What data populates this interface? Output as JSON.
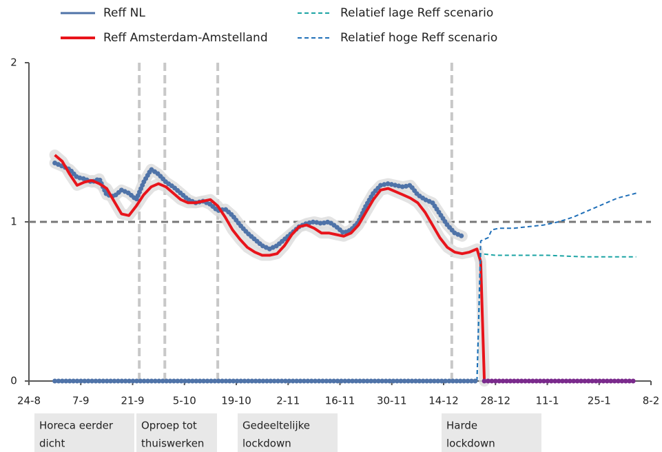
{
  "chart_data": {
    "type": "line",
    "xlim": [
      0,
      168
    ],
    "xticks": [
      {
        "value": 0,
        "label": "24-8"
      },
      {
        "value": 14,
        "label": "7-9"
      },
      {
        "value": 28,
        "label": "21-9"
      },
      {
        "value": 42,
        "label": "5-10"
      },
      {
        "value": 56,
        "label": "19-10"
      },
      {
        "value": 70,
        "label": "2-11"
      },
      {
        "value": 84,
        "label": "16-11"
      },
      {
        "value": 98,
        "label": "30-11"
      },
      {
        "value": 112,
        "label": "14-12"
      },
      {
        "value": 126,
        "label": "28-12"
      },
      {
        "value": 140,
        "label": "11-1"
      },
      {
        "value": 154,
        "label": "25-1"
      },
      {
        "value": 168,
        "label": "8-2"
      }
    ],
    "ylim": [
      0,
      2
    ],
    "yticks": [
      0,
      1,
      2
    ],
    "reference_line": 1,
    "legend": "top-left",
    "series": [
      {
        "name": "Reff NL",
        "color": "#4f73a8",
        "style": "dotted",
        "band": true,
        "x": [
          7,
          9,
          11,
          13,
          15,
          17,
          19,
          21,
          23,
          25,
          27,
          29,
          31,
          33,
          35,
          37,
          39,
          41,
          43,
          45,
          47,
          49,
          51,
          53,
          55,
          57,
          59,
          61,
          63,
          65,
          67,
          69,
          71,
          73,
          75,
          77,
          79,
          81,
          83,
          85,
          87,
          89,
          91,
          93,
          95,
          97,
          99,
          101,
          103,
          105,
          107,
          109,
          111,
          113,
          115,
          117
        ],
        "values": [
          1.37,
          1.35,
          1.33,
          1.28,
          1.27,
          1.25,
          1.27,
          1.17,
          1.16,
          1.2,
          1.18,
          1.14,
          1.25,
          1.33,
          1.3,
          1.25,
          1.22,
          1.18,
          1.14,
          1.12,
          1.13,
          1.11,
          1.07,
          1.08,
          1.04,
          0.98,
          0.93,
          0.89,
          0.85,
          0.83,
          0.85,
          0.89,
          0.93,
          0.97,
          0.99,
          1.0,
          0.99,
          1.0,
          0.97,
          0.93,
          0.95,
          1.0,
          1.1,
          1.18,
          1.23,
          1.24,
          1.23,
          1.22,
          1.23,
          1.17,
          1.14,
          1.12,
          1.05,
          0.98,
          0.93,
          0.91
        ]
      },
      {
        "name": "Reff Amsterdam-Amstelland",
        "color": "#e8141b",
        "style": "solid",
        "band": true,
        "x": [
          7,
          9,
          11,
          13,
          15,
          17,
          19,
          21,
          23,
          25,
          27,
          29,
          31,
          33,
          35,
          37,
          39,
          41,
          43,
          45,
          47,
          49,
          51,
          53,
          55,
          57,
          59,
          61,
          63,
          65,
          67,
          69,
          71,
          73,
          75,
          77,
          79,
          81,
          83,
          85,
          87,
          89,
          91,
          93,
          95,
          97,
          99,
          101,
          103,
          105,
          107,
          109,
          111,
          113,
          115,
          117,
          119,
          121,
          122,
          123
        ],
        "values": [
          1.42,
          1.38,
          1.3,
          1.23,
          1.25,
          1.26,
          1.24,
          1.21,
          1.13,
          1.05,
          1.04,
          1.1,
          1.17,
          1.22,
          1.24,
          1.22,
          1.18,
          1.14,
          1.12,
          1.12,
          1.13,
          1.14,
          1.1,
          1.03,
          0.95,
          0.89,
          0.84,
          0.81,
          0.79,
          0.79,
          0.8,
          0.85,
          0.92,
          0.97,
          0.98,
          0.96,
          0.93,
          0.93,
          0.92,
          0.91,
          0.93,
          0.98,
          1.06,
          1.14,
          1.2,
          1.21,
          1.19,
          1.17,
          1.15,
          1.12,
          1.06,
          0.98,
          0.9,
          0.84,
          0.81,
          0.8,
          0.81,
          0.83,
          0.75,
          0
        ]
      },
      {
        "name": "Relatief lage Reff scenario",
        "color": "#1aa3a3",
        "style": "dashed",
        "x": [
          121,
          122,
          126,
          130,
          140,
          150,
          164
        ],
        "values": [
          0,
          0.8,
          0.79,
          0.79,
          0.79,
          0.78,
          0.78
        ]
      },
      {
        "name": "Relatief hoge Reff scenario",
        "color": "#1f6fb8",
        "style": "dashed",
        "x": [
          121,
          122,
          124,
          125,
          127,
          131,
          135,
          139,
          143,
          147,
          151,
          155,
          159,
          164
        ],
        "values": [
          0,
          0.88,
          0.9,
          0.95,
          0.96,
          0.96,
          0.97,
          0.98,
          1.0,
          1.03,
          1.07,
          1.11,
          1.15,
          1.18
        ]
      },
      {
        "color": "#4f73a8",
        "style": "dotted",
        "x": [
          7,
          121
        ],
        "values": [
          0,
          0
        ]
      },
      {
        "color": "#7a2a8c",
        "style": "dotted",
        "x": [
          123,
          164
        ],
        "values": [
          0,
          0
        ]
      }
    ],
    "annotations": [
      {
        "x": 29.8,
        "text": [
          "Horeca eerder",
          "dicht"
        ]
      },
      {
        "x": 36.7,
        "text": [
          "Oproep tot",
          "thuiswerken"
        ]
      },
      {
        "x": 51,
        "text": [
          "Gedeeltelijke",
          "lockdown"
        ]
      },
      {
        "x": 114.2,
        "text": [
          "Harde",
          "lockdown"
        ]
      }
    ]
  }
}
